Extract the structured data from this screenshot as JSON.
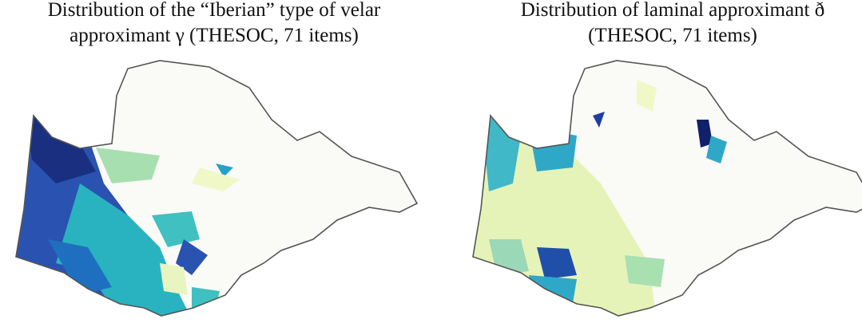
{
  "maps": [
    {
      "title_line1": "Distribution of the “Iberian” type of velar",
      "title_line2": "approximant γ (THESOC, 71 items)"
    },
    {
      "title_line1": "Distribution of laminal approximant ð",
      "title_line2": "(THESOC, 71 items)"
    }
  ]
}
